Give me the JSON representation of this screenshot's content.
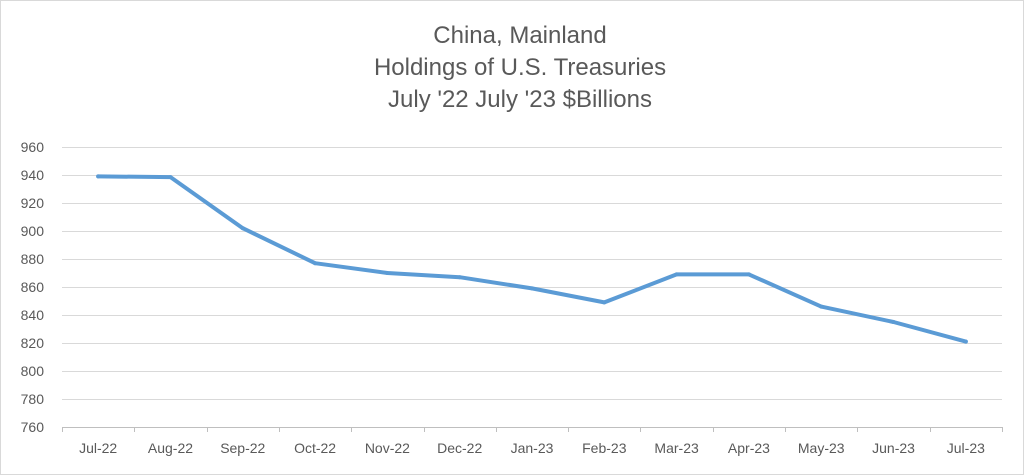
{
  "chart_data": {
    "type": "line",
    "title_lines": [
      "China, Mainland",
      "Holdings of U.S. Treasuries",
      "July '22 July '23 $Billions"
    ],
    "xlabel": "",
    "ylabel": "",
    "categories": [
      "Jul-22",
      "Aug-22",
      "Sep-22",
      "Oct-22",
      "Nov-22",
      "Dec-22",
      "Jan-23",
      "Feb-23",
      "Mar-23",
      "Apr-23",
      "May-23",
      "Jun-23",
      "Jul-23"
    ],
    "series": [
      {
        "values": [
          939,
          938.5,
          902,
          877,
          870,
          867,
          859,
          849,
          869,
          869,
          846,
          835,
          821
        ],
        "color": "#5b9bd5"
      }
    ],
    "ylim": [
      760,
      960
    ],
    "yticks": [
      760,
      780,
      800,
      820,
      840,
      860,
      880,
      900,
      920,
      940,
      960
    ],
    "grid": true,
    "legend": "none",
    "gridline_color": "#d9d9d9",
    "axis_color": "#bfbfbf",
    "text_color": "#595959"
  }
}
